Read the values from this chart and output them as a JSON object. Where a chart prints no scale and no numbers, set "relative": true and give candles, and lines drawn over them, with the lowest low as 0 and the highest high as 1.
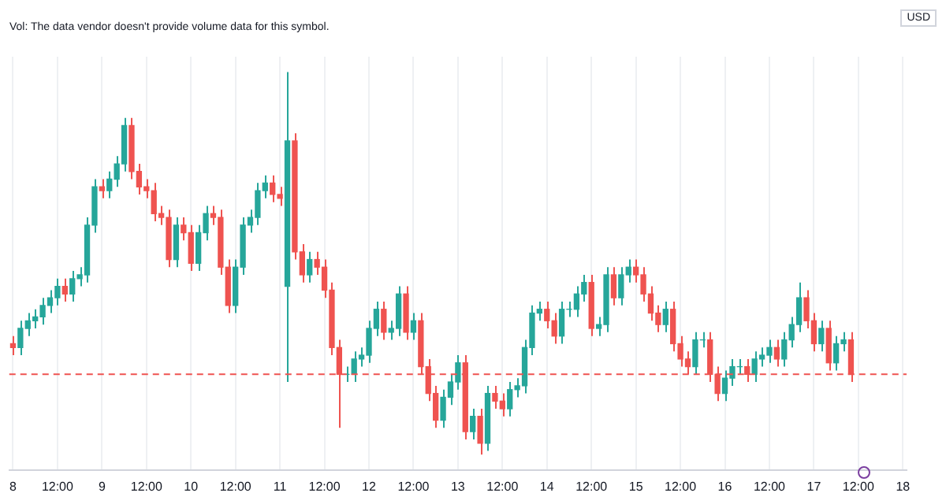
{
  "chart_data": {
    "type": "candlestick",
    "relative": true,
    "ylabel": "USD",
    "grid": "x",
    "legend": false,
    "annotations": [
      "Vol: The data vendor doesn't provide volume data for this symbol."
    ],
    "categories": [
      "8",
      null,
      null,
      null,
      null,
      null,
      "12:00",
      null,
      null,
      null,
      null,
      null,
      "9",
      null,
      null,
      null,
      null,
      null,
      "12:00",
      null,
      null,
      null,
      null,
      null,
      "10",
      null,
      null,
      null,
      null,
      null,
      "12:00",
      null,
      null,
      null,
      null,
      null,
      "11",
      null,
      null,
      null,
      null,
      null,
      "12:00",
      null,
      null,
      null,
      null,
      null,
      "12",
      null,
      null,
      null,
      null,
      null,
      "12:00",
      null,
      null,
      null,
      null,
      null,
      "13",
      null,
      null,
      null,
      null,
      null,
      "12:00",
      null,
      null,
      null,
      null,
      null,
      "14",
      null,
      null,
      null,
      null,
      null,
      "12:00",
      null,
      null,
      null,
      null,
      null,
      "15",
      null,
      null,
      null,
      null,
      null,
      "12:00",
      null,
      null,
      null,
      null,
      null,
      "16",
      null,
      null,
      null,
      null,
      null,
      "12:00",
      null,
      null,
      null,
      null,
      null,
      "17",
      null,
      null,
      null,
      null,
      null,
      "12:00",
      null,
      null,
      null,
      null,
      null,
      "18"
    ],
    "ref_lines": [
      {
        "axis": "y",
        "value": 0.21,
        "color": "#ef5350",
        "line_style": "dashed"
      }
    ],
    "colors": [
      "#ef5350",
      "#26a69a",
      "#26a69a",
      "#26a69a",
      "#26a69a",
      "#26a69a",
      "#26a69a",
      "#ef5350",
      "#26a69a",
      "#26a69a",
      "#26a69a",
      "#26a69a",
      "#ef5350",
      "#26a69a",
      "#26a69a",
      "#26a69a",
      "#ef5350",
      "#ef5350",
      "#ef5350",
      "#ef5350",
      "#ef5350",
      "#ef5350",
      "#26a69a",
      "#ef5350",
      "#ef5350",
      "#26a69a",
      "#26a69a",
      "#ef5350",
      "#ef5350",
      "#ef5350",
      "#26a69a",
      "#26a69a",
      "#26a69a",
      "#26a69a",
      "#26a69a",
      "#ef5350",
      "#ef5350",
      "#26a69a",
      "#ef5350",
      "#ef5350",
      "#26a69a",
      "#ef5350",
      "#ef5350",
      "#ef5350",
      "#ef5350",
      "#26a69a",
      "#26a69a",
      "#26a69a",
      "#26a69a",
      "#26a69a",
      "#ef5350",
      "#26a69a",
      "#26a69a",
      "#ef5350",
      "#26a69a",
      "#ef5350",
      "#ef5350",
      "#ef5350",
      "#26a69a",
      "#26a69a",
      "#26a69a",
      "#ef5350",
      "#26a69a",
      "#ef5350",
      "#26a69a",
      "#ef5350",
      "#ef5350",
      "#26a69a",
      "#26a69a",
      "#26a69a",
      "#26a69a",
      "#26a69a",
      "#ef5350",
      "#ef5350",
      "#26a69a",
      "#26a69a",
      "#26a69a",
      "#26a69a",
      "#ef5350",
      "#26a69a",
      "#26a69a",
      "#ef5350",
      "#26a69a",
      "#26a69a",
      "#ef5350",
      "#ef5350",
      "#ef5350",
      "#ef5350",
      "#26a69a",
      "#ef5350",
      "#ef5350",
      "#ef5350",
      "#26a69a",
      "#26a69a",
      "#ef5350",
      "#ef5350",
      "#26a69a",
      "#26a69a",
      "#26a69a",
      "#ef5350",
      "#26a69a",
      "#26a69a",
      "#26a69a",
      "#ef5350",
      "#26a69a",
      "#26a69a",
      "#26a69a",
      "#ef5350",
      "#ef5350",
      "#26a69a",
      "#ef5350",
      "#26a69a",
      "#26a69a",
      "#ef5350",
      null,
      null,
      null,
      null,
      null,
      null,
      null
    ],
    "ohlc": [
      [
        0.29,
        0.31,
        0.26,
        0.28
      ],
      [
        0.28,
        0.35,
        0.26,
        0.33
      ],
      [
        0.33,
        0.37,
        0.31,
        0.35
      ],
      [
        0.35,
        0.38,
        0.33,
        0.36
      ],
      [
        0.36,
        0.41,
        0.34,
        0.39
      ],
      [
        0.39,
        0.43,
        0.37,
        0.41
      ],
      [
        0.41,
        0.46,
        0.39,
        0.44
      ],
      [
        0.44,
        0.46,
        0.4,
        0.42
      ],
      [
        0.42,
        0.48,
        0.4,
        0.46
      ],
      [
        0.46,
        0.49,
        0.44,
        0.47
      ],
      [
        0.47,
        0.62,
        0.45,
        0.6
      ],
      [
        0.6,
        0.72,
        0.58,
        0.7
      ],
      [
        0.7,
        0.72,
        0.67,
        0.69
      ],
      [
        0.69,
        0.74,
        0.67,
        0.72
      ],
      [
        0.72,
        0.78,
        0.7,
        0.76
      ],
      [
        0.76,
        0.88,
        0.74,
        0.86
      ],
      [
        0.86,
        0.88,
        0.72,
        0.74
      ],
      [
        0.74,
        0.76,
        0.68,
        0.7
      ],
      [
        0.7,
        0.72,
        0.67,
        0.69
      ],
      [
        0.69,
        0.71,
        0.61,
        0.63
      ],
      [
        0.63,
        0.65,
        0.6,
        0.62
      ],
      [
        0.62,
        0.64,
        0.49,
        0.51
      ],
      [
        0.51,
        0.62,
        0.49,
        0.6
      ],
      [
        0.6,
        0.62,
        0.56,
        0.58
      ],
      [
        0.58,
        0.6,
        0.48,
        0.5
      ],
      [
        0.5,
        0.6,
        0.48,
        0.58
      ],
      [
        0.58,
        0.65,
        0.56,
        0.63
      ],
      [
        0.63,
        0.65,
        0.6,
        0.62
      ],
      [
        0.62,
        0.64,
        0.47,
        0.49
      ],
      [
        0.49,
        0.51,
        0.37,
        0.39
      ],
      [
        0.39,
        0.51,
        0.37,
        0.49
      ],
      [
        0.49,
        0.62,
        0.47,
        0.6
      ],
      [
        0.6,
        0.64,
        0.58,
        0.62
      ],
      [
        0.62,
        0.71,
        0.6,
        0.69
      ],
      [
        0.69,
        0.73,
        0.67,
        0.71
      ],
      [
        0.71,
        0.73,
        0.66,
        0.68
      ],
      [
        0.68,
        0.7,
        0.65,
        0.67
      ],
      [
        0.44,
        1,
        0.19,
        0.82
      ],
      [
        0.82,
        0.84,
        0.51,
        0.53
      ],
      [
        0.53,
        0.55,
        0.45,
        0.47
      ],
      [
        0.47,
        0.53,
        0.45,
        0.51
      ],
      [
        0.51,
        0.53,
        0.47,
        0.49
      ],
      [
        0.49,
        0.51,
        0.41,
        0.43
      ],
      [
        0.43,
        0.45,
        0.26,
        0.28
      ],
      [
        0.28,
        0.3,
        0.07,
        0.21
      ],
      [
        0.21,
        0.23,
        0.19,
        0.21
      ],
      [
        0.21,
        0.27,
        0.19,
        0.25
      ],
      [
        0.25,
        0.28,
        0.23,
        0.26
      ],
      [
        0.26,
        0.35,
        0.24,
        0.33
      ],
      [
        0.33,
        0.4,
        0.31,
        0.38
      ],
      [
        0.38,
        0.4,
        0.3,
        0.32
      ],
      [
        0.32,
        0.35,
        0.3,
        0.33
      ],
      [
        0.33,
        0.44,
        0.31,
        0.42
      ],
      [
        0.42,
        0.44,
        0.3,
        0.32
      ],
      [
        0.32,
        0.37,
        0.3,
        0.35
      ],
      [
        0.35,
        0.37,
        0.21,
        0.23
      ],
      [
        0.23,
        0.25,
        0.14,
        0.16
      ],
      [
        0.16,
        0.18,
        0.07,
        0.09
      ],
      [
        0.09,
        0.17,
        0.07,
        0.15
      ],
      [
        0.15,
        0.21,
        0.13,
        0.19
      ],
      [
        0.19,
        0.26,
        0.17,
        0.24
      ],
      [
        0.24,
        0.26,
        0.04,
        0.06
      ],
      [
        0.06,
        0.12,
        0.04,
        0.1
      ],
      [
        0.1,
        0.12,
        0,
        0.03
      ],
      [
        0.03,
        0.18,
        0.01,
        0.16
      ],
      [
        0.16,
        0.18,
        0.12,
        0.14
      ],
      [
        0.14,
        0.16,
        0.1,
        0.12
      ],
      [
        0.12,
        0.19,
        0.1,
        0.17
      ],
      [
        0.17,
        0.2,
        0.15,
        0.18
      ],
      [
        0.18,
        0.3,
        0.16,
        0.28
      ],
      [
        0.28,
        0.39,
        0.26,
        0.37
      ],
      [
        0.37,
        0.4,
        0.35,
        0.38
      ],
      [
        0.38,
        0.4,
        0.33,
        0.35
      ],
      [
        0.35,
        0.37,
        0.29,
        0.31
      ],
      [
        0.31,
        0.4,
        0.29,
        0.38
      ],
      [
        0.38,
        0.4,
        0.36,
        0.38
      ],
      [
        0.38,
        0.44,
        0.36,
        0.42
      ],
      [
        0.42,
        0.47,
        0.4,
        0.45
      ],
      [
        0.45,
        0.47,
        0.31,
        0.33
      ],
      [
        0.33,
        0.36,
        0.31,
        0.34
      ],
      [
        0.34,
        0.49,
        0.32,
        0.47
      ],
      [
        0.47,
        0.49,
        0.39,
        0.41
      ],
      [
        0.41,
        0.49,
        0.39,
        0.47
      ],
      [
        0.47,
        0.51,
        0.45,
        0.49
      ],
      [
        0.49,
        0.51,
        0.45,
        0.47
      ],
      [
        0.47,
        0.49,
        0.4,
        0.42
      ],
      [
        0.42,
        0.44,
        0.35,
        0.37
      ],
      [
        0.37,
        0.39,
        0.32,
        0.34
      ],
      [
        0.34,
        0.4,
        0.32,
        0.38
      ],
      [
        0.38,
        0.4,
        0.27,
        0.29
      ],
      [
        0.29,
        0.31,
        0.23,
        0.25
      ],
      [
        0.25,
        0.27,
        0.21,
        0.23
      ],
      [
        0.23,
        0.32,
        0.21,
        0.3
      ],
      [
        0.3,
        0.32,
        0.28,
        0.3
      ],
      [
        0.3,
        0.32,
        0.19,
        0.21
      ],
      [
        0.21,
        0.23,
        0.14,
        0.16
      ],
      [
        0.16,
        0.22,
        0.14,
        0.2
      ],
      [
        0.2,
        0.25,
        0.18,
        0.23
      ],
      [
        0.23,
        0.25,
        0.21,
        0.23
      ],
      [
        0.23,
        0.25,
        0.19,
        0.21
      ],
      [
        0.21,
        0.27,
        0.19,
        0.25
      ],
      [
        0.25,
        0.28,
        0.23,
        0.26
      ],
      [
        0.26,
        0.3,
        0.24,
        0.28
      ],
      [
        0.28,
        0.3,
        0.23,
        0.25
      ],
      [
        0.25,
        0.32,
        0.23,
        0.3
      ],
      [
        0.3,
        0.36,
        0.28,
        0.34
      ],
      [
        0.34,
        0.45,
        0.32,
        0.41
      ],
      [
        0.41,
        0.43,
        0.33,
        0.35
      ],
      [
        0.35,
        0.37,
        0.27,
        0.29
      ],
      [
        0.29,
        0.35,
        0.27,
        0.33
      ],
      [
        0.33,
        0.35,
        0.22,
        0.24
      ],
      [
        0.24,
        0.31,
        0.22,
        0.29
      ],
      [
        0.29,
        0.32,
        0.27,
        0.3
      ],
      [
        0.3,
        0.32,
        0.19,
        0.21
      ],
      null,
      null,
      null,
      null,
      null,
      null,
      null
    ]
  }
}
